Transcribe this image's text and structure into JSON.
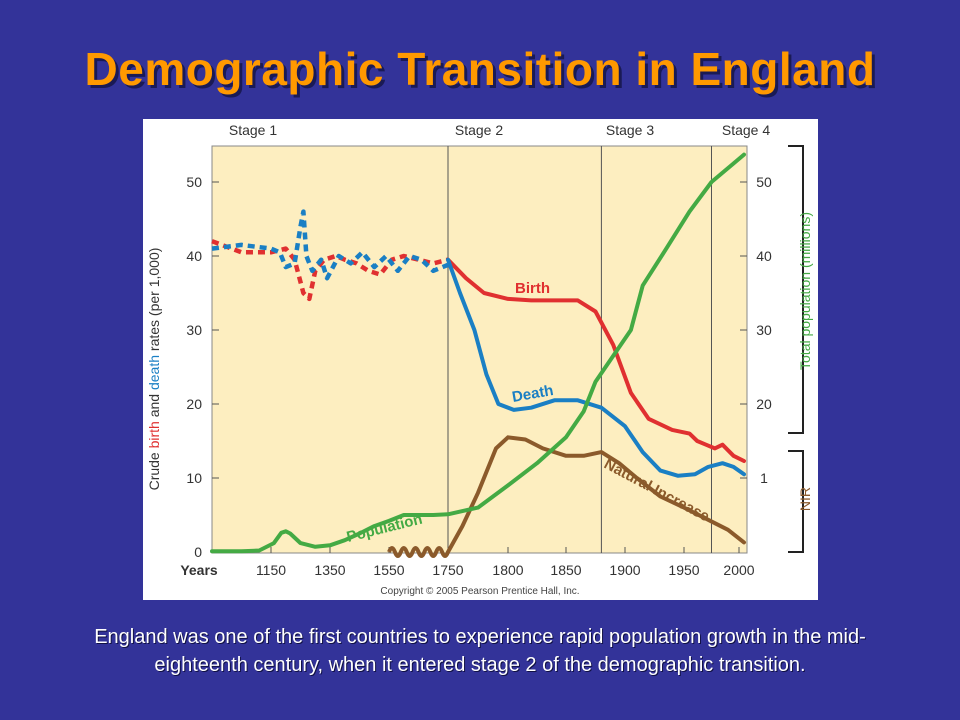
{
  "slide": {
    "title": "Demographic Transition in England",
    "caption": "England was one of the first countries to experience rapid population growth in the mid-eighteenth century, when it entered stage 2 of the demographic transition.",
    "background_color": "#333399",
    "title_color": "#ff9900"
  },
  "chart_data": {
    "type": "line",
    "stages": [
      {
        "label": "Stage 1",
        "start_year": 1050
      },
      {
        "label": "Stage 2",
        "start_year": 1750
      },
      {
        "label": "Stage 3",
        "start_year": 1880
      },
      {
        "label": "Stage 4",
        "start_year": 1975
      }
    ],
    "x_axis": {
      "label": "Years",
      "ticks": [
        "1150",
        "1350",
        "1550",
        "1750",
        "1800",
        "1850",
        "1900",
        "1950",
        "2000"
      ]
    },
    "y_axis_left": {
      "label_parts": [
        {
          "text": "Crude ",
          "color": "#333333"
        },
        {
          "text": "birth",
          "color": "#e03030"
        },
        {
          "text": " and ",
          "color": "#333333"
        },
        {
          "text": "death",
          "color": "#1a7fc4"
        },
        {
          "text": " rates (per 1,000)",
          "color": "#333333"
        }
      ],
      "ticks": [
        0,
        10,
        20,
        30,
        40,
        50
      ],
      "range": [
        0,
        55
      ]
    },
    "y_axis_right": {
      "label": "Total population (millions)",
      "ticks": [
        1,
        20,
        30,
        40,
        50
      ],
      "nir_label": "NIR"
    },
    "background_color": "#fdeec0",
    "series": [
      {
        "name": "Birth",
        "color": "#e03030",
        "points": [
          [
            1750,
            39.5
          ],
          [
            1765,
            37
          ],
          [
            1780,
            35
          ],
          [
            1800,
            34.2
          ],
          [
            1820,
            34
          ],
          [
            1860,
            34
          ],
          [
            1875,
            32.5
          ],
          [
            1890,
            28
          ],
          [
            1905,
            21.5
          ],
          [
            1920,
            18
          ],
          [
            1940,
            16.5
          ],
          [
            1955,
            16
          ],
          [
            1962,
            15
          ],
          [
            1970,
            14.5
          ],
          [
            1978,
            14
          ],
          [
            1985,
            14.5
          ],
          [
            1995,
            13
          ],
          [
            2005,
            12.3
          ]
        ],
        "pre_modern_dashed": [
          [
            1050,
            42
          ],
          [
            1100,
            40.5
          ],
          [
            1150,
            40.5
          ],
          [
            1200,
            41
          ],
          [
            1230,
            39.5
          ],
          [
            1260,
            35
          ],
          [
            1280,
            34.2
          ],
          [
            1300,
            38
          ],
          [
            1330,
            39.5
          ],
          [
            1370,
            40
          ],
          [
            1400,
            39.5
          ],
          [
            1440,
            39
          ],
          [
            1480,
            38
          ],
          [
            1520,
            37.5
          ],
          [
            1560,
            39.5
          ],
          [
            1600,
            40
          ],
          [
            1650,
            39.5
          ],
          [
            1700,
            39
          ],
          [
            1750,
            39.5
          ]
        ]
      },
      {
        "name": "Death",
        "color": "#1a7fc4",
        "points": [
          [
            1750,
            39.5
          ],
          [
            1760,
            35
          ],
          [
            1772,
            30
          ],
          [
            1782,
            24
          ],
          [
            1792,
            20
          ],
          [
            1805,
            19.2
          ],
          [
            1820,
            19.5
          ],
          [
            1840,
            20.5
          ],
          [
            1860,
            20.5
          ],
          [
            1880,
            19.5
          ],
          [
            1900,
            17
          ],
          [
            1915,
            13.5
          ],
          [
            1930,
            11
          ],
          [
            1945,
            10.3
          ],
          [
            1960,
            10.5
          ],
          [
            1972,
            11.5
          ],
          [
            1985,
            12
          ],
          [
            1995,
            11.5
          ],
          [
            2005,
            10.5
          ]
        ],
        "pre_modern_dashed": [
          [
            1050,
            41
          ],
          [
            1100,
            41.5
          ],
          [
            1150,
            41
          ],
          [
            1180,
            40.5
          ],
          [
            1200,
            38.5
          ],
          [
            1230,
            39
          ],
          [
            1250,
            44
          ],
          [
            1260,
            46
          ],
          [
            1270,
            40
          ],
          [
            1290,
            38
          ],
          [
            1320,
            39.5
          ],
          [
            1340,
            37
          ],
          [
            1380,
            40
          ],
          [
            1420,
            39
          ],
          [
            1460,
            40.5
          ],
          [
            1500,
            38.5
          ],
          [
            1540,
            40
          ],
          [
            1580,
            38
          ],
          [
            1620,
            40
          ],
          [
            1660,
            39.5
          ],
          [
            1700,
            38
          ],
          [
            1750,
            38.8
          ]
        ]
      },
      {
        "name": "Natural Increase",
        "color": "#8b5a2b",
        "points": [
          [
            1750,
            0
          ],
          [
            1762,
            3.5
          ],
          [
            1775,
            8
          ],
          [
            1790,
            14
          ],
          [
            1800,
            15.5
          ],
          [
            1815,
            15.2
          ],
          [
            1830,
            14
          ],
          [
            1850,
            13
          ],
          [
            1865,
            13
          ],
          [
            1880,
            13.5
          ],
          [
            1895,
            12
          ],
          [
            1910,
            10
          ],
          [
            1930,
            7.5
          ],
          [
            1950,
            6
          ],
          [
            1970,
            4.5
          ],
          [
            1990,
            3
          ],
          [
            2005,
            1.3
          ]
        ],
        "pre_modern_wavy": [
          1550,
          1750
        ]
      },
      {
        "name": "Population",
        "color": "#44aa44",
        "points": [
          [
            1050,
            0.1
          ],
          [
            1100,
            0.1
          ],
          [
            1130,
            0.2
          ],
          [
            1160,
            1.2
          ],
          [
            1185,
            2.6
          ],
          [
            1200,
            2.8
          ],
          [
            1215,
            2.5
          ],
          [
            1250,
            1.2
          ],
          [
            1300,
            0.7
          ],
          [
            1350,
            0.9
          ],
          [
            1400,
            1.6
          ],
          [
            1450,
            2.5
          ],
          [
            1500,
            3.5
          ],
          [
            1550,
            4.2
          ],
          [
            1600,
            5
          ],
          [
            1650,
            5
          ],
          [
            1700,
            5
          ],
          [
            1750,
            5.1
          ],
          [
            1775,
            6
          ],
          [
            1800,
            9
          ],
          [
            1825,
            12
          ],
          [
            1850,
            15.5
          ],
          [
            1865,
            19
          ],
          [
            1875,
            23
          ],
          [
            1890,
            26.5
          ],
          [
            1905,
            30
          ],
          [
            1915,
            36
          ],
          [
            1935,
            41
          ],
          [
            1955,
            46
          ],
          [
            1975,
            50
          ],
          [
            1995,
            52.5
          ],
          [
            2005,
            53.7
          ]
        ]
      }
    ],
    "annotations": [
      {
        "text": "Birth",
        "series": "Birth"
      },
      {
        "text": "Death",
        "series": "Death"
      },
      {
        "text": "Population",
        "series": "Population"
      },
      {
        "text": "Natural Increase",
        "series": "Natural Increase"
      }
    ],
    "copyright": "Copyright © 2005 Pearson Prentice Hall, Inc."
  }
}
